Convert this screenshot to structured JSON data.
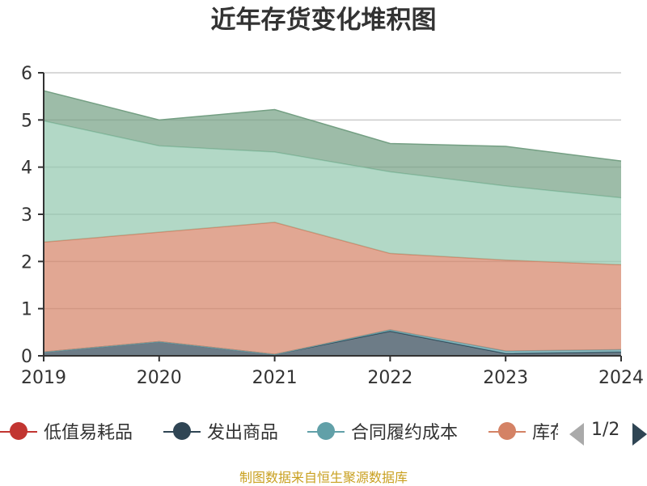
{
  "title": "近年存货变化堆积图",
  "source_note": "制图数据来自恒生聚源数据库",
  "legend": {
    "items": [
      {
        "label": "低值易耗品",
        "color": "#c23531"
      },
      {
        "label": "发出商品",
        "color": "#2f4554"
      },
      {
        "label": "合同履约成本",
        "color": "#61a0a8"
      },
      {
        "label": "库存商品",
        "color": "#d48265"
      }
    ],
    "page": "1/2"
  },
  "chart_data": {
    "type": "area",
    "stacked": true,
    "categories": [
      "2019",
      "2020",
      "2021",
      "2022",
      "2023",
      "2024"
    ],
    "ylim": [
      0,
      6
    ],
    "yticks": [
      "0",
      "1",
      "2",
      "3",
      "4",
      "5",
      "6"
    ],
    "grid": true,
    "series": [
      {
        "name": "低值易耗品",
        "color": "#c23531",
        "values": [
          0,
          0,
          0,
          0,
          0,
          0
        ]
      },
      {
        "name": "发出商品",
        "color": "#2f4554",
        "values": [
          0.08,
          0.3,
          0.03,
          0.52,
          0.05,
          0.08
        ]
      },
      {
        "name": "合同履约成本",
        "color": "#61a0a8",
        "values": [
          0,
          0,
          0,
          0.03,
          0.05,
          0.05
        ]
      },
      {
        "name": "库存商品",
        "color": "#d48265",
        "values": [
          2.33,
          2.32,
          2.8,
          1.62,
          1.93,
          1.8
        ]
      },
      {
        "color": "#91c7ae",
        "values": [
          2.57,
          1.83,
          1.49,
          1.73,
          1.57,
          1.42
        ]
      },
      {
        "color": "#749f83",
        "values": [
          0.64,
          0.55,
          0.9,
          0.6,
          0.84,
          0.78
        ]
      }
    ]
  }
}
